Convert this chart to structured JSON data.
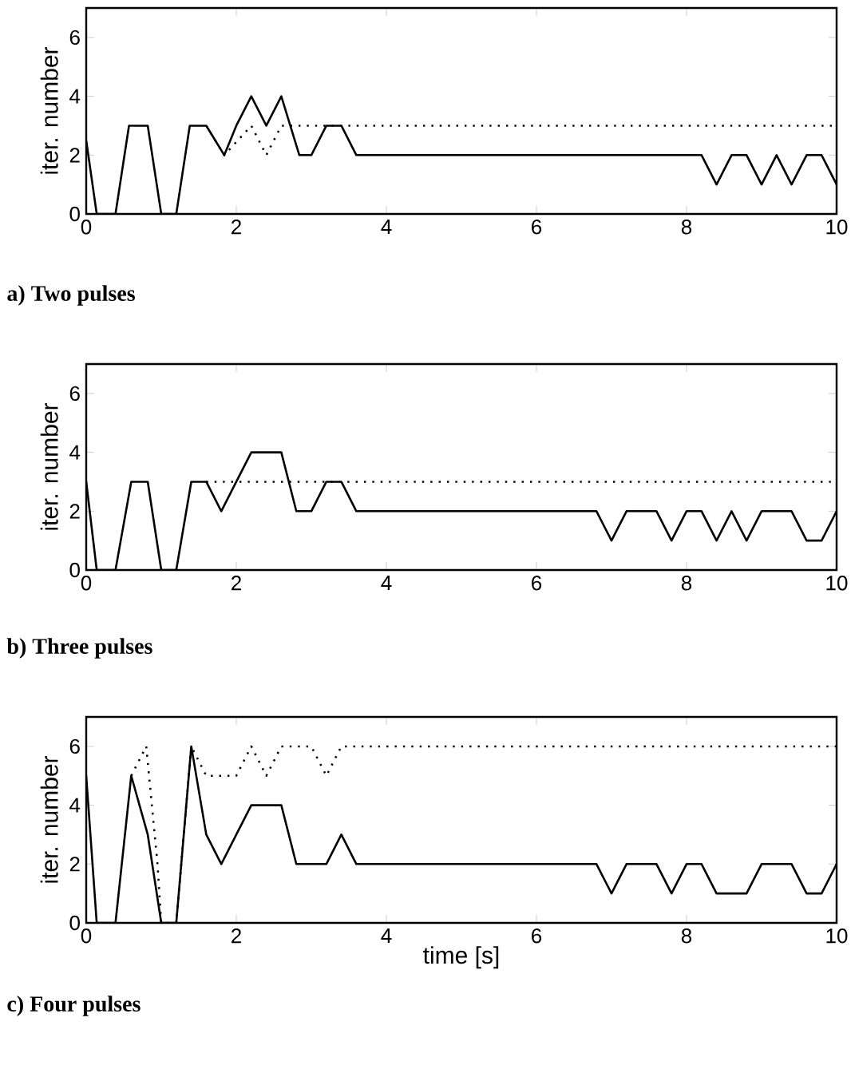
{
  "chart_data": [
    {
      "type": "line",
      "xlim": [
        0,
        10
      ],
      "ylim": [
        0,
        7
      ],
      "xticks": [
        0,
        2,
        4,
        6,
        8,
        10
      ],
      "yticks": [
        0,
        2,
        4,
        6
      ],
      "ylabel": "iter. number",
      "annotations": [
        "a) Two pulses"
      ],
      "series": [
        {
          "color": "#000000",
          "line_style": "solid",
          "x": [
            0,
            0.14,
            0.39,
            0.57,
            0.82,
            1.0,
            1.2,
            1.38,
            1.6,
            1.84,
            2.0,
            2.2,
            2.4,
            2.6,
            2.84,
            3.0,
            3.2,
            3.4,
            3.6,
            8.2,
            8.4,
            8.6,
            8.8,
            9.0,
            9.2,
            9.4,
            9.6,
            9.8,
            10
          ],
          "values": [
            2.5,
            0,
            0,
            3,
            3,
            0,
            0,
            3,
            3,
            2,
            3,
            4,
            3,
            4,
            2,
            2,
            3,
            3,
            2,
            2,
            1,
            2,
            2,
            1,
            2,
            1,
            2,
            2,
            1
          ]
        },
        {
          "color": "#000000",
          "line_style": "dotted",
          "x": [
            1.6,
            1.84,
            2.2,
            2.4,
            2.6,
            10
          ],
          "values": [
            3,
            2,
            3,
            2,
            3,
            3
          ]
        }
      ]
    },
    {
      "type": "line",
      "xlim": [
        0,
        10
      ],
      "ylim": [
        0,
        7
      ],
      "xticks": [
        0,
        2,
        4,
        6,
        8,
        10
      ],
      "yticks": [
        0,
        2,
        4,
        6
      ],
      "ylabel": "iter. number",
      "annotations": [
        "b) Three pulses"
      ],
      "series": [
        {
          "color": "#000000",
          "line_style": "solid",
          "x": [
            0,
            0.14,
            0.39,
            0.6,
            0.82,
            1.0,
            1.2,
            1.4,
            1.6,
            1.8,
            2.0,
            2.2,
            2.6,
            2.8,
            3.0,
            3.2,
            3.4,
            3.6,
            6.8,
            7.0,
            7.2,
            7.6,
            7.8,
            8.0,
            8.2,
            8.4,
            8.6,
            8.8,
            9.0,
            9.4,
            9.6,
            9.8,
            10
          ],
          "values": [
            3,
            0,
            0,
            3,
            3,
            0,
            0,
            3,
            3,
            2,
            3,
            4,
            4,
            2,
            2,
            3,
            3,
            2,
            2,
            1,
            2,
            2,
            1,
            2,
            2,
            1,
            2,
            1,
            2,
            2,
            1,
            1,
            2
          ]
        },
        {
          "color": "#000000",
          "line_style": "dotted",
          "x": [
            1.6,
            10
          ],
          "values": [
            3,
            3
          ]
        }
      ]
    },
    {
      "type": "line",
      "xlim": [
        0,
        10
      ],
      "ylim": [
        0,
        7
      ],
      "xticks": [
        0,
        2,
        4,
        6,
        8,
        10
      ],
      "yticks": [
        0,
        2,
        4,
        6
      ],
      "ylabel": "iter. number",
      "xlabel": "time [s]",
      "annotations": [
        "c) Four pulses"
      ],
      "series": [
        {
          "color": "#000000",
          "line_style": "solid",
          "x": [
            0,
            0.14,
            0.39,
            0.6,
            0.82,
            1.0,
            1.2,
            1.4,
            1.6,
            1.8,
            2.0,
            2.2,
            2.6,
            2.8,
            3.2,
            3.4,
            3.6,
            6.8,
            7.0,
            7.2,
            7.6,
            7.8,
            8.0,
            8.2,
            8.4,
            8.8,
            9.0,
            9.4,
            9.6,
            9.8,
            10
          ],
          "values": [
            5,
            0,
            0,
            5,
            3,
            0,
            0,
            6,
            3,
            2,
            3,
            4,
            4,
            2,
            2,
            3,
            2,
            2,
            1,
            2,
            2,
            1,
            2,
            2,
            1,
            1,
            2,
            2,
            1,
            1,
            2
          ]
        },
        {
          "color": "#000000",
          "line_style": "dotted",
          "x": [
            0.6,
            0.8,
            0.95,
            1.0,
            1.2,
            1.4,
            1.6,
            2.0,
            2.2,
            2.4,
            2.6,
            3.0,
            3.2,
            3.4,
            10
          ],
          "values": [
            5,
            6,
            2,
            0,
            0,
            6,
            5,
            5,
            6,
            5,
            6,
            6,
            5,
            6,
            6
          ]
        }
      ]
    }
  ]
}
